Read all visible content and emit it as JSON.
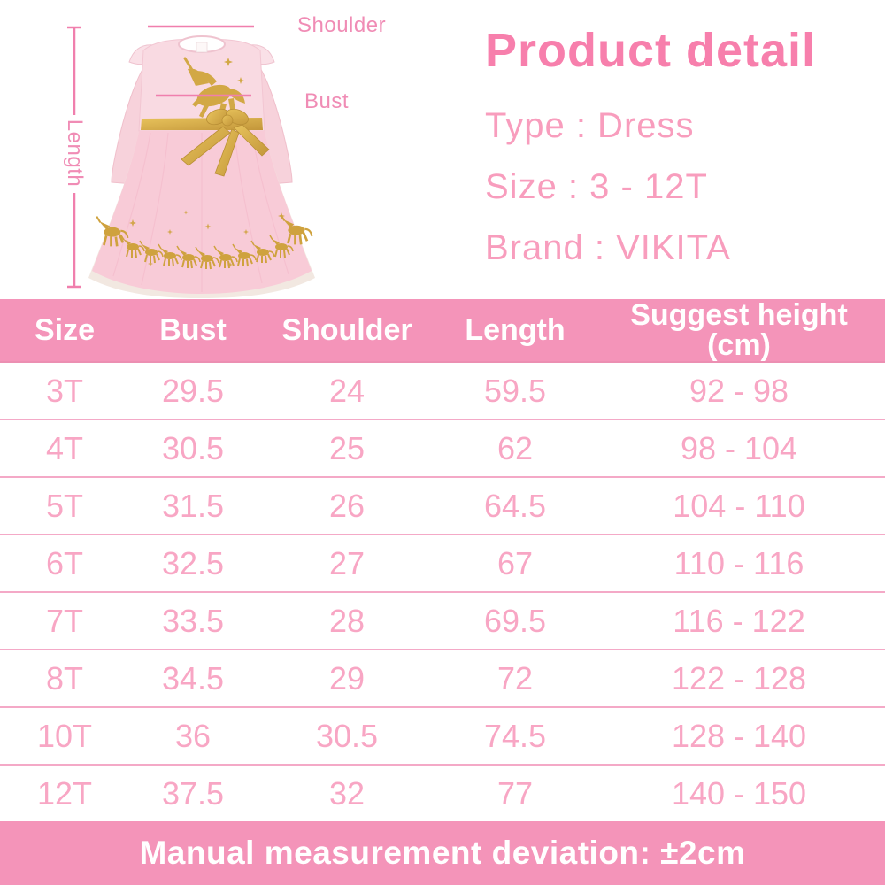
{
  "photo": {
    "measure_labels": {
      "shoulder": "Shoulder",
      "bust": "Bust",
      "length": "Length"
    }
  },
  "product_detail": {
    "title": "Product detail",
    "type_line": "Type : Dress",
    "size_line": "Size : 3 - 12T",
    "brand_line": "Brand : VIKITA"
  },
  "size_chart": {
    "type": "table",
    "columns": [
      "Size",
      "Bust",
      "Shoulder",
      "Length",
      "Suggest height\n(cm)"
    ],
    "rows": [
      [
        "3T",
        "29.5",
        "24",
        "59.5",
        "92 - 98"
      ],
      [
        "4T",
        "30.5",
        "25",
        "62",
        "98 - 104"
      ],
      [
        "5T",
        "31.5",
        "26",
        "64.5",
        "104 - 110"
      ],
      [
        "6T",
        "32.5",
        "27",
        "67",
        "110 - 116"
      ],
      [
        "7T",
        "33.5",
        "28",
        "69.5",
        "116 - 122"
      ],
      [
        "8T",
        "34.5",
        "29",
        "72",
        "122 - 128"
      ],
      [
        "10T",
        "36",
        "30.5",
        "74.5",
        "128 - 140"
      ],
      [
        "12T",
        "37.5",
        "32",
        "77",
        "140 - 150"
      ]
    ]
  },
  "footer": {
    "note": "Manual measurement deviation: ±2cm"
  },
  "colors": {
    "header_bg": "#F494B9",
    "footer_bg": "#F494B9",
    "title_pink": "#F77FAC",
    "detail_text_pink": "#F89DBD",
    "table_value_pink": "#F8A6C4",
    "divider_pink": "#F4A9C7",
    "measure_line_pink": "#F07FAD",
    "dress_pink": "#F9DAE2",
    "skirt_pink": "#F8CBD7",
    "gold": "#CFA23E"
  }
}
